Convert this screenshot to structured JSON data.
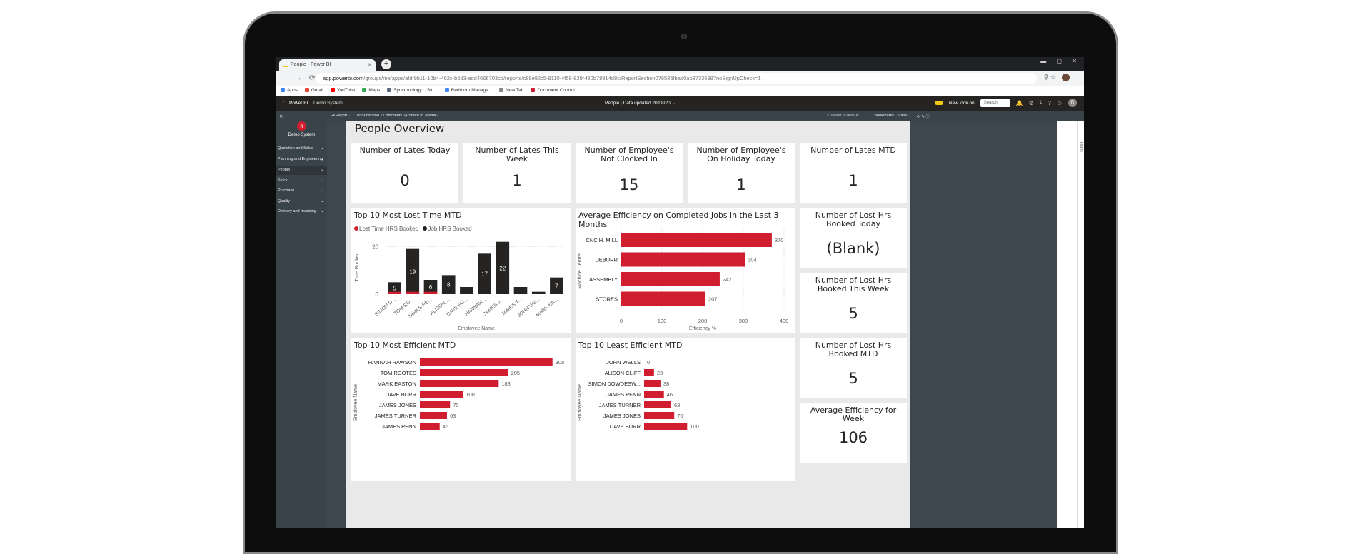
{
  "browser": {
    "tab_title": "People - Power BI",
    "tab_close": "×",
    "new_tab": "+",
    "window_buttons": "▬ ▢ ✕",
    "nav": {
      "back": "←",
      "forward": "→",
      "reload": "⟳"
    },
    "url_host": "app.powerbi.com",
    "url_path": "/groups/me/apps/afdf9b11-10b4-462c-b5d3-add4666703cd/reports/c89e92c5-9110-4f58-829f-f80b78914d8c/ReportSection076585fbad0ab8733699?noSignUpCheck=1",
    "addr_icons": "⚲ ☆",
    "bookmarks": [
      {
        "label": "Apps",
        "color": "#4285f4"
      },
      {
        "label": "Gmail",
        "color": "#ea4335"
      },
      {
        "label": "YouTube",
        "color": "#ff0000"
      },
      {
        "label": "Maps",
        "color": "#34a853"
      },
      {
        "label": "Syncronology :: Sin...",
        "color": "#5a6a7a"
      },
      {
        "label": "Redthorn Manage...",
        "color": "#4285f4"
      },
      {
        "label": "New Tab",
        "color": "#888888"
      },
      {
        "label": "Document Control...",
        "color": "#d01e30"
      }
    ]
  },
  "pbi": {
    "app_name": "Power BI",
    "workspace": "Demo System",
    "report_header": "People  |  Data updated 20/08/20  ⌄",
    "new_look_label": "New look on",
    "search_placeholder": "Search",
    "header_icons": [
      "🔔",
      "⚙",
      "⤓",
      "?",
      "☺"
    ],
    "avatar": "R",
    "waffle": "⋮⋮⋮",
    "toolbar": {
      "export": "⇥ Export ⌄",
      "subscribe": "✉ Subscribe",
      "comments": "☐ Comments",
      "share": "⊞ Share to Teams",
      "more": "···",
      "reset": "↶ Reset to default",
      "bookmarks": "☐ Bookmarks ⌄",
      "view": "View ⌄",
      "right_icons": "⟳  ✎  ⓘ"
    },
    "filters_label": "Filters"
  },
  "leftnav": {
    "collapse": "«",
    "logo_glyph": "ʀ",
    "app_title": "Demo System",
    "items": [
      {
        "label": "Quotation and Sales"
      },
      {
        "label": "Planning and Engineering"
      },
      {
        "label": "People"
      },
      {
        "label": "Stock"
      },
      {
        "label": "Purchase"
      },
      {
        "label": "Quality"
      },
      {
        "label": "Delivery and Invoicing"
      }
    ],
    "chevron": "⌄"
  },
  "report": {
    "title": "People Overview",
    "kpis": [
      {
        "title": "Number of Lates Today",
        "value": "0"
      },
      {
        "title": "Number of Lates This Week",
        "value": "1"
      },
      {
        "title": "Number of Employee's Not Clocked In",
        "value": "15"
      },
      {
        "title": "Number of Employee's On Holiday Today",
        "value": "1"
      },
      {
        "title": "Number of Lates MTD",
        "value": "1"
      }
    ],
    "side_cards": [
      {
        "title": "Number of Lost Hrs Booked Today",
        "value": "(Blank)"
      },
      {
        "title": "Number of Lost Hrs Booked This Week",
        "value": "5"
      },
      {
        "title": "Number of Lost Hrs Booked MTD",
        "value": "5"
      },
      {
        "title": "Average Efficiency for Week",
        "value": "106"
      }
    ]
  },
  "colors": {
    "red": "#d01e30",
    "dark": "#252423"
  },
  "chart_data": [
    {
      "type": "bar",
      "title": "Top 10 Most Lost Time MTD",
      "xlabel": "Employee Name",
      "ylabel": "Time Booked",
      "legend": [
        "Lost Time HRS Booked",
        "Job HRS Booked"
      ],
      "categories": [
        "SIMON D...",
        "TOM RO...",
        "JAMES PE...",
        "ALISON ...",
        "DAVE BU...",
        "HANNAH...",
        "JAMES J...",
        "JAMES T...",
        "JOHN WE...",
        "MARK EA..."
      ],
      "series": [
        {
          "name": "Lost Time HRS Booked",
          "values": [
            1,
            1,
            1,
            0,
            0,
            0,
            0,
            0,
            0,
            0
          ]
        },
        {
          "name": "Job HRS Booked",
          "values": [
            5,
            19,
            6,
            8,
            3,
            17,
            22,
            3,
            1,
            7
          ]
        }
      ],
      "data_labels": [
        "5",
        "19",
        "6",
        "8",
        "",
        "17",
        "22",
        "",
        "",
        "7"
      ],
      "yticks": [
        "0",
        "20"
      ],
      "ylim": [
        0,
        24
      ]
    },
    {
      "type": "bar",
      "orientation": "horizontal",
      "title": "Average Efficiency on Completed Jobs in the Last 3 Months",
      "xlabel": "Efficiency %",
      "ylabel": "Machine Centre",
      "categories": [
        "CNC H. MILL",
        "DEBURR",
        "ASSEMBLY",
        "STORES"
      ],
      "values": [
        370,
        304,
        242,
        207
      ],
      "xticks": [
        "0",
        "100",
        "200",
        "300",
        "400"
      ],
      "xlim": [
        0,
        400
      ]
    },
    {
      "type": "bar",
      "orientation": "horizontal",
      "title": "Top 10 Most Efficient MTD",
      "ylabel": "Employee Name",
      "categories": [
        "HANNAH RAWSON",
        "TOM ROOTES",
        "MARK EASTON",
        "DAVE BURR",
        "JAMES JONES",
        "JAMES TURNER",
        "JAMES PENN"
      ],
      "values": [
        308,
        205,
        183,
        100,
        70,
        63,
        46
      ],
      "xlim": [
        0,
        340
      ]
    },
    {
      "type": "bar",
      "orientation": "horizontal",
      "title": "Top 10 Least Efficient MTD",
      "ylabel": "Employee Name",
      "categories": [
        "JOHN WELLS",
        "ALISON CLIFF",
        "SIMON DOWDESW...",
        "JAMES PENN",
        "JAMES TURNER",
        "JAMES JONES",
        "DAVE BURR"
      ],
      "values": [
        0,
        23,
        38,
        46,
        63,
        70,
        100
      ],
      "xlim": [
        0,
        340
      ]
    }
  ]
}
